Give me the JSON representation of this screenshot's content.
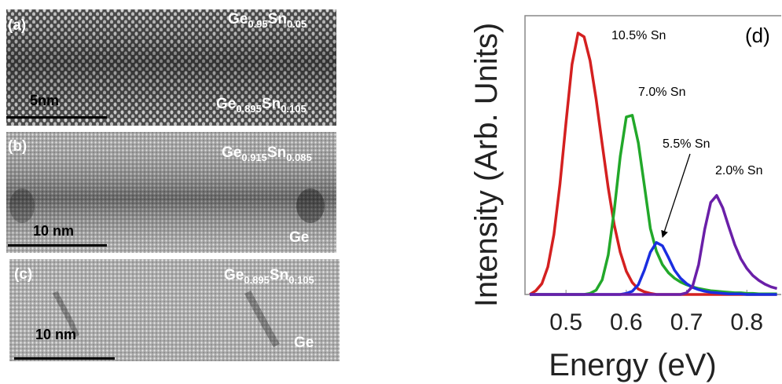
{
  "panels": [
    {
      "tag": "(a)",
      "top_label": [
        "Ge",
        "0.95",
        "Sn",
        "0.05"
      ],
      "bottom_label": [
        "Ge",
        "0.895",
        "Sn",
        "0.105"
      ],
      "scale_bar": "5nm"
    },
    {
      "tag": "(b)",
      "top_label": [
        "Ge",
        "0.915",
        "Sn",
        "0.085"
      ],
      "bottom_label": [
        "Ge"
      ],
      "scale_bar": "10 nm"
    },
    {
      "tag": "(c)",
      "top_label": [
        "Ge",
        "0.895",
        "Sn",
        "0.105"
      ],
      "bottom_label": [
        "Ge"
      ],
      "scale_bar": "10 nm"
    }
  ],
  "chart_data": {
    "type": "line",
    "tag": "(d)",
    "xlabel": "Energy (eV)",
    "ylabel": "Intensity (Arb. Units)",
    "xlim": [
      0.432,
      0.857
    ],
    "xticks": [
      0.5,
      0.6,
      0.7,
      0.8
    ],
    "ylim": [
      0,
      5.15
    ],
    "x": [
      0.44,
      0.45,
      0.46,
      0.47,
      0.48,
      0.49,
      0.5,
      0.51,
      0.52,
      0.53,
      0.54,
      0.55,
      0.56,
      0.57,
      0.58,
      0.59,
      0.6,
      0.61,
      0.62,
      0.63,
      0.64,
      0.65,
      0.66,
      0.67,
      0.68,
      0.69,
      0.7,
      0.71,
      0.72,
      0.73,
      0.74,
      0.75,
      0.76,
      0.77,
      0.78,
      0.79,
      0.8,
      0.81,
      0.82,
      0.83,
      0.84,
      0.85
    ],
    "series": [
      {
        "name": "10.5% Sn",
        "color": "#d42020",
        "values": [
          0,
          0.07,
          0.2,
          0.51,
          1.11,
          2.04,
          3.18,
          4.25,
          4.83,
          4.76,
          4.32,
          3.61,
          2.78,
          1.97,
          1.29,
          0.78,
          0.43,
          0.22,
          0.1,
          0.05,
          0.02,
          0,
          0,
          0,
          0,
          0,
          0,
          0,
          0,
          0,
          0,
          0,
          0,
          0,
          0,
          0,
          0,
          0,
          0,
          0,
          0,
          0
        ]
      },
      {
        "name": "7.0% Sn",
        "color": "#22a82a",
        "values": [
          0,
          0,
          0,
          0,
          0,
          0,
          0,
          0,
          0,
          0,
          0.02,
          0.08,
          0.27,
          0.73,
          1.55,
          2.55,
          3.28,
          3.31,
          2.8,
          2.01,
          1.22,
          0.8,
          0.55,
          0.4,
          0.3,
          0.23,
          0.18,
          0.14,
          0.11,
          0.09,
          0.07,
          0.06,
          0.05,
          0.04,
          0.03,
          0.03,
          0.02,
          0.02,
          0.01,
          0.01,
          0.01,
          0.01
        ]
      },
      {
        "name": "5.5% Sn",
        "color": "#1a2ee0",
        "values": [
          0,
          0,
          0,
          0,
          0,
          0,
          0,
          0,
          0,
          0,
          0,
          0,
          0,
          0,
          0,
          0,
          0.02,
          0.06,
          0.18,
          0.45,
          0.78,
          0.96,
          0.9,
          0.68,
          0.45,
          0.3,
          0.2,
          0.13,
          0.09,
          0.06,
          0.04,
          0.03,
          0.02,
          0.01,
          0.01,
          0.01,
          0,
          0,
          0,
          0,
          0,
          0
        ]
      },
      {
        "name": "2.0% Sn",
        "color": "#6a1fa8",
        "values": [
          0,
          0,
          0,
          0,
          0,
          0,
          0,
          0,
          0,
          0,
          0,
          0,
          0,
          0,
          0,
          0,
          0,
          0,
          0,
          0,
          0,
          0,
          0,
          0,
          0,
          0,
          0.03,
          0.15,
          0.55,
          1.2,
          1.7,
          1.83,
          1.6,
          1.25,
          0.92,
          0.66,
          0.48,
          0.35,
          0.26,
          0.19,
          0.14,
          0.11
        ]
      }
    ]
  }
}
